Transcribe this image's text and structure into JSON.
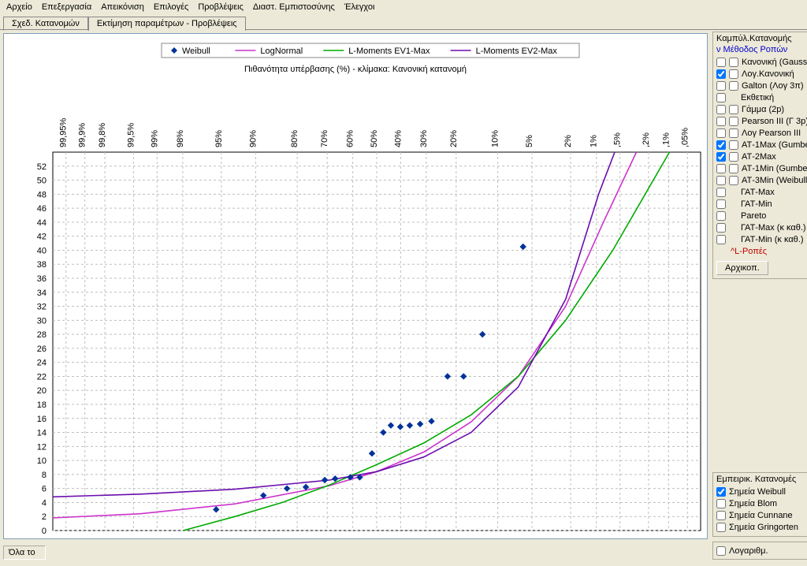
{
  "menu": [
    "Αρχείο",
    "Επεξεργασία",
    "Απεικόνιση",
    "Επιλογές",
    "Προβλέψεις",
    "Διαστ. Εμπιστοσύνης",
    "Έλεγχοι"
  ],
  "tabs": {
    "active": "Σχεδ. Κατανομών",
    "other": "Εκτίμηση παραμέτρων - Προβλέψεις"
  },
  "status": "Όλα το",
  "legend": [
    {
      "label": "Weibull",
      "type": "point",
      "color": "#003399"
    },
    {
      "label": "LogNormal",
      "type": "line",
      "color": "#cc33cc"
    },
    {
      "label": "L-Moments EV1-Max",
      "type": "line",
      "color": "#00aa00"
    },
    {
      "label": "L-Moments EV2-Max",
      "type": "line",
      "color": "#6a0dad"
    }
  ],
  "chart": {
    "subtitle": "Πιθανότητα υπέρβασης (%) - κλίμακα: Κανονική κατανομή",
    "x_ticklabels": [
      "99,95%",
      "99,9%",
      "99,8%",
      "99,5%",
      "99%",
      "98%",
      "95%",
      "90%",
      "80%",
      "70%",
      "60%",
      "50%",
      "40%",
      "30%",
      "20%",
      "10%",
      "5%",
      "2%",
      "1%",
      ",5%",
      ",2%",
      ",1%",
      ",05%"
    ],
    "x_tick_u": [
      -3.2905,
      -3.0902,
      -2.8782,
      -2.5758,
      -2.3263,
      -2.0537,
      -1.6449,
      -1.2816,
      -0.8416,
      -0.5244,
      -0.2533,
      0.0,
      0.2533,
      0.5244,
      0.8416,
      1.2816,
      1.6449,
      2.0537,
      2.3263,
      2.5758,
      2.8782,
      3.0902,
      3.2905
    ],
    "u_min": -3.43,
    "u_max": 3.43,
    "y_ticks": [
      0,
      2,
      4,
      6,
      8,
      10,
      12,
      14,
      16,
      18,
      20,
      22,
      24,
      26,
      28,
      30,
      32,
      34,
      36,
      38,
      40,
      42,
      44,
      46,
      48,
      50,
      52
    ],
    "y_min": 0,
    "y_max": 54,
    "grid_color": "#bfbfbf",
    "axis_color": "#000000",
    "bg_color": "#ffffff",
    "weibull_points": [
      {
        "u": -1.7,
        "y": 3.0
      },
      {
        "u": -1.2,
        "y": 5.0
      },
      {
        "u": -0.95,
        "y": 6.0
      },
      {
        "u": -0.75,
        "y": 6.2
      },
      {
        "u": -0.55,
        "y": 7.2
      },
      {
        "u": -0.44,
        "y": 7.4
      },
      {
        "u": -0.28,
        "y": 7.6
      },
      {
        "u": -0.18,
        "y": 7.6
      },
      {
        "u": -0.05,
        "y": 11.0
      },
      {
        "u": 0.07,
        "y": 14.0
      },
      {
        "u": 0.15,
        "y": 15.0
      },
      {
        "u": 0.25,
        "y": 14.8
      },
      {
        "u": 0.35,
        "y": 15.0
      },
      {
        "u": 0.46,
        "y": 15.2
      },
      {
        "u": 0.58,
        "y": 15.6
      },
      {
        "u": 0.75,
        "y": 22.0
      },
      {
        "u": 0.92,
        "y": 22.0
      },
      {
        "u": 1.12,
        "y": 28.0
      },
      {
        "u": 1.55,
        "y": 40.5
      }
    ],
    "series": [
      {
        "name": "LogNormal",
        "color": "#cc33cc",
        "pts": [
          [
            -3.43,
            1.8
          ],
          [
            -2.5,
            2.4
          ],
          [
            -1.5,
            3.8
          ],
          [
            -0.5,
            6.4
          ],
          [
            0.0,
            8.4
          ],
          [
            0.5,
            11.2
          ],
          [
            1.0,
            15.5
          ],
          [
            1.5,
            22.0
          ],
          [
            2.0,
            32.0
          ],
          [
            2.4,
            44.0
          ],
          [
            2.75,
            54.0
          ]
        ]
      },
      {
        "name": "EV1",
        "color": "#00aa00",
        "pts": [
          [
            -2.05,
            0.0
          ],
          [
            -1.5,
            2.0
          ],
          [
            -1.0,
            4.0
          ],
          [
            -0.5,
            6.5
          ],
          [
            0.0,
            9.4
          ],
          [
            0.5,
            12.5
          ],
          [
            1.0,
            16.5
          ],
          [
            1.5,
            22.0
          ],
          [
            2.0,
            30.0
          ],
          [
            2.5,
            40.0
          ],
          [
            3.1,
            54.0
          ]
        ]
      },
      {
        "name": "EV2",
        "color": "#6a0dad",
        "pts": [
          [
            -3.43,
            4.8
          ],
          [
            -2.5,
            5.2
          ],
          [
            -1.5,
            5.9
          ],
          [
            -0.5,
            7.2
          ],
          [
            0.0,
            8.4
          ],
          [
            0.5,
            10.5
          ],
          [
            1.0,
            14.0
          ],
          [
            1.5,
            20.5
          ],
          [
            2.0,
            33.0
          ],
          [
            2.35,
            48.0
          ],
          [
            2.52,
            54.0
          ]
        ]
      }
    ]
  },
  "side": {
    "group1_title": "Καμπύλ.Κατανομής",
    "group1_sub": "ν Μέθοδος Ροπών",
    "dist_items": [
      {
        "c1": false,
        "c2": false,
        "label": "Κανονική (Gauss)"
      },
      {
        "c1": true,
        "c2": false,
        "label": "Λογ.Κανονική"
      },
      {
        "c1": false,
        "c2": false,
        "label": "Galton (Λογ 3π)"
      },
      {
        "c1": false,
        "c2": null,
        "label": "Εκθετική"
      },
      {
        "c1": false,
        "c2": false,
        "label": "Γάμμα (2p)"
      },
      {
        "c1": false,
        "c2": false,
        "label": "Pearson III (Γ 3p)"
      },
      {
        "c1": false,
        "c2": false,
        "label": "Λογ Pearson III"
      },
      {
        "c1": true,
        "c2": false,
        "label": "ΑΤ-1Max (Gumbel)"
      },
      {
        "c1": true,
        "c2": false,
        "label": "ΑΤ-2Max"
      },
      {
        "c1": false,
        "c2": false,
        "label": "ΑΤ-1Min (Gumbel)"
      },
      {
        "c1": false,
        "c2": false,
        "label": "ΑΤ-3Min (Weibull)"
      },
      {
        "c1": false,
        "c2": null,
        "label": "ΓΑΤ-Max"
      },
      {
        "c1": false,
        "c2": null,
        "label": "ΓΑΤ-Min"
      },
      {
        "c1": false,
        "c2": null,
        "label": "Pareto"
      },
      {
        "c1": false,
        "c2": null,
        "label": "ΓΑΤ-Max (κ καθ.)"
      },
      {
        "c1": false,
        "c2": null,
        "label": "ΓΑΤ-Min (κ καθ.)"
      }
    ],
    "lropes": "^L-Ροπές",
    "reset_btn": "Αρχικοπ.",
    "group2_title": "Εμπειρικ. Κατανομές",
    "emp_items": [
      {
        "c": true,
        "label": "Σημεία Weibull"
      },
      {
        "c": false,
        "label": "Σημεία Blom"
      },
      {
        "c": false,
        "label": "Σημεία Cunnane"
      },
      {
        "c": false,
        "label": "Σημεία Gringorten"
      }
    ],
    "log_label": "Λογαριθμ."
  }
}
